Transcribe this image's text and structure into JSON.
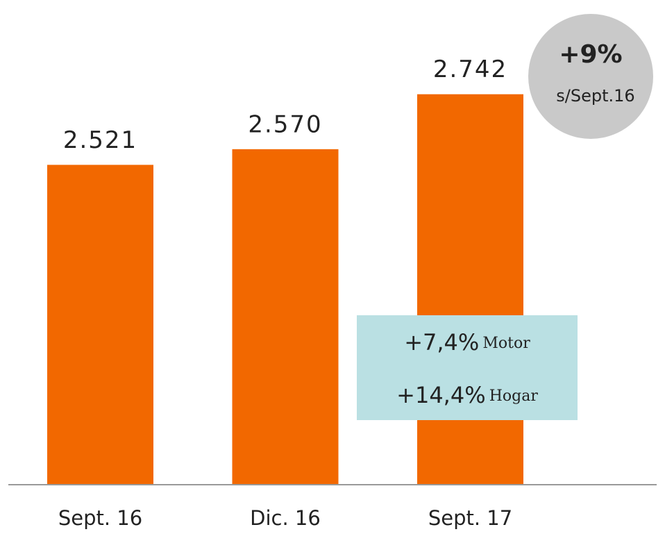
{
  "chart_data": {
    "type": "bar",
    "categories": [
      "Sept. 16",
      "Dic. 16",
      "Sept. 17"
    ],
    "values": [
      2521,
      2570,
      2742
    ],
    "value_labels": [
      "2.521",
      "2.570",
      "2.742"
    ],
    "color": "#f26800",
    "ylim": [
      1520,
      2950
    ],
    "annotations": {
      "growth": {
        "value": "+9%",
        "note": "s/Sept.16"
      },
      "breakdown": [
        {
          "value": "+7,4%",
          "label": "Motor"
        },
        {
          "value": "+14,4%",
          "label": "Hogar"
        }
      ]
    }
  }
}
